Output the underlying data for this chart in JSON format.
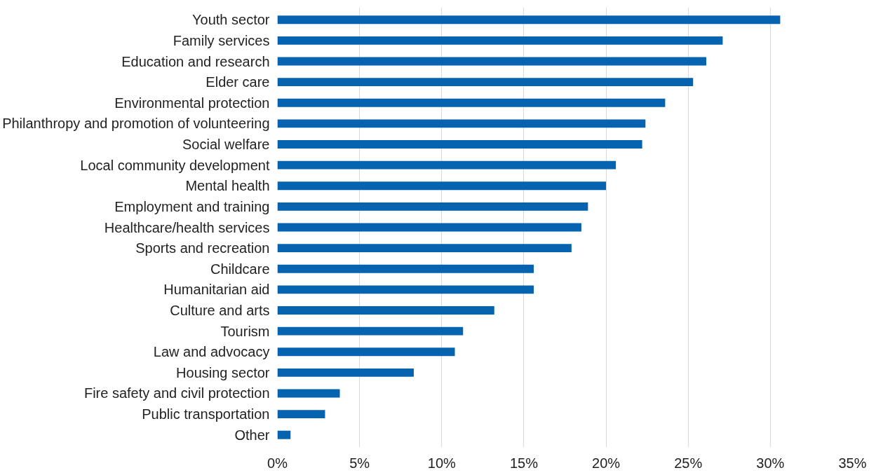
{
  "chart_data": {
    "type": "bar",
    "orientation": "horizontal",
    "categories": [
      "Youth sector",
      "Family services",
      "Education and research",
      "Elder care",
      "Environmental protection",
      "Philanthropy and promotion of volunteering",
      "Social welfare",
      "Local community development",
      "Mental health",
      "Employment and training",
      "Healthcare/health services",
      "Sports and recreation",
      "Childcare",
      "Humanitarian aid",
      "Culture and arts",
      "Tourism",
      "Law and advocacy",
      "Housing sector",
      "Fire safety and civil protection",
      "Public transportation",
      "Other"
    ],
    "values": [
      30.6,
      27.1,
      26.1,
      25.3,
      23.6,
      22.4,
      22.2,
      20.6,
      20.0,
      18.9,
      18.5,
      17.9,
      15.6,
      15.6,
      13.2,
      11.3,
      10.8,
      8.3,
      3.8,
      2.9,
      0.8
    ],
    "color": "#0563b0",
    "xlim": [
      0,
      35
    ],
    "xticks": [
      {
        "value": 0,
        "label": "0%"
      },
      {
        "value": 5,
        "label": "5%"
      },
      {
        "value": 10,
        "label": "10%"
      },
      {
        "value": 15,
        "label": "15%"
      },
      {
        "value": 20,
        "label": "20%"
      },
      {
        "value": 25,
        "label": "25%"
      },
      {
        "value": 30,
        "label": "30%"
      },
      {
        "value": 35,
        "label": "35%"
      }
    ],
    "grid": "x"
  }
}
